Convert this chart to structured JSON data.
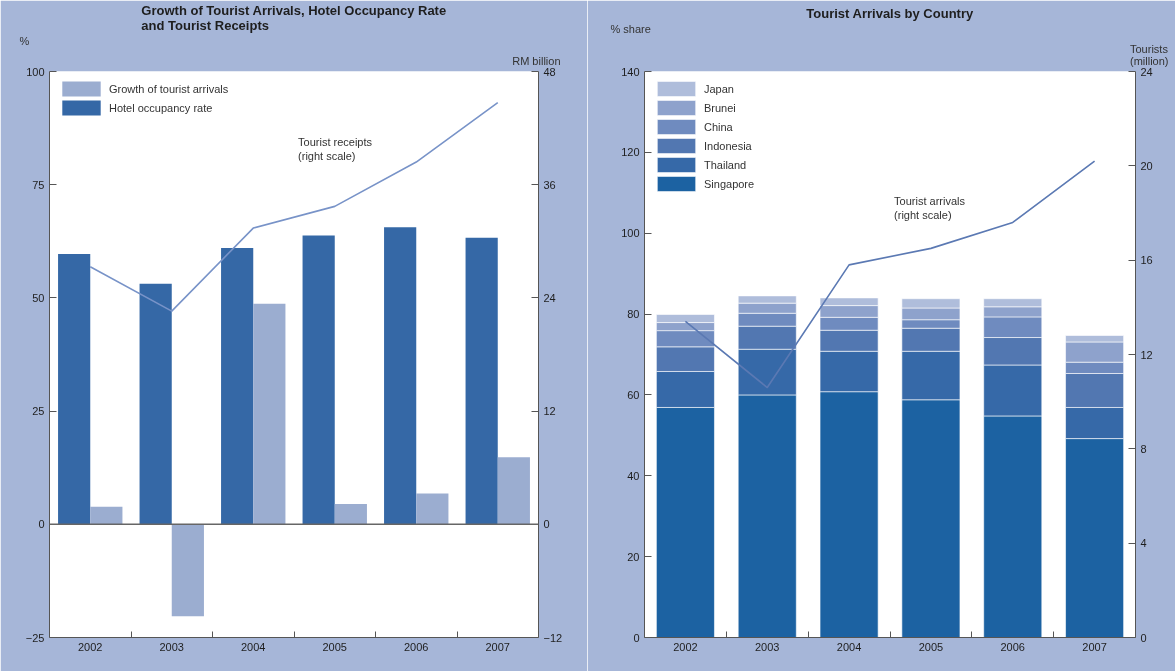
{
  "chart_data": [
    {
      "type": "bar",
      "title": "Growth of Tourist Arrivals, Hotel Occupancy Rate\nand Tourist Receipts",
      "ylabel": "%",
      "y2label": "RM billion",
      "categories": [
        "2002",
        "2003",
        "2004",
        "2005",
        "2006",
        "2007"
      ],
      "series": [
        {
          "name": "Hotel occupancy rate",
          "color": "#3568a6",
          "values": [
            59.7,
            53.1,
            61.0,
            63.8,
            65.6,
            63.3
          ]
        },
        {
          "name": "Growth of tourist arrivals",
          "color": "#9badd0",
          "values": [
            3.9,
            -20.3,
            48.7,
            4.5,
            6.8,
            14.8
          ]
        },
        {
          "name": "Tourist receipts\n(right scale)",
          "type": "line",
          "axis": "y2",
          "color": "#7893c8",
          "values": [
            27.3,
            22.6,
            31.4,
            33.7,
            38.4,
            44.7
          ]
        }
      ],
      "ylim": [
        -25,
        100
      ],
      "yticks": [
        -25,
        0,
        25,
        50,
        75,
        100
      ],
      "y2lim": [
        -12,
        48
      ],
      "y2ticks": [
        -12,
        0,
        12,
        24,
        36,
        48
      ],
      "legend": "top left"
    },
    {
      "type": "bar",
      "stacked": true,
      "title": "Tourist Arrivals by Country",
      "ylabel": "% share",
      "y2label": "Tourists\n(million)",
      "categories": [
        "2002",
        "2003",
        "2004",
        "2005",
        "2006",
        "2007"
      ],
      "series": [
        {
          "name": "Singapore",
          "color": "#1c62a2",
          "values": [
            56.9,
            60.0,
            60.8,
            58.8,
            54.8,
            49.2
          ]
        },
        {
          "name": "Thailand",
          "color": "#3669a8",
          "values": [
            8.9,
            11.3,
            10.0,
            12.0,
            12.6,
            7.7
          ]
        },
        {
          "name": "Indonesia",
          "color": "#5277b1",
          "values": [
            6.1,
            5.7,
            5.2,
            5.7,
            6.8,
            8.4
          ]
        },
        {
          "name": "China",
          "color": "#6f8bbf",
          "values": [
            4.0,
            3.2,
            3.2,
            2.1,
            5.1,
            2.8
          ]
        },
        {
          "name": "Brunei",
          "color": "#8ea2cc",
          "values": [
            2.0,
            2.5,
            2.9,
            2.9,
            2.5,
            5.0
          ]
        },
        {
          "name": "Japan",
          "color": "#afbddb",
          "values": [
            2.0,
            1.8,
            1.9,
            2.3,
            2.0,
            1.6
          ]
        },
        {
          "name": "Tourist arrivals\n(right scale)",
          "type": "line",
          "axis": "y2",
          "color": "#5b79b3",
          "values": [
            13.4,
            10.6,
            15.8,
            16.5,
            17.6,
            20.2
          ]
        }
      ],
      "ylim": [
        0,
        140
      ],
      "yticks": [
        0,
        20,
        40,
        60,
        80,
        100,
        120,
        140
      ],
      "y2lim": [
        0,
        24
      ],
      "y2ticks": [
        0,
        4,
        8,
        12,
        16,
        20,
        24
      ],
      "legend": "top left"
    }
  ]
}
